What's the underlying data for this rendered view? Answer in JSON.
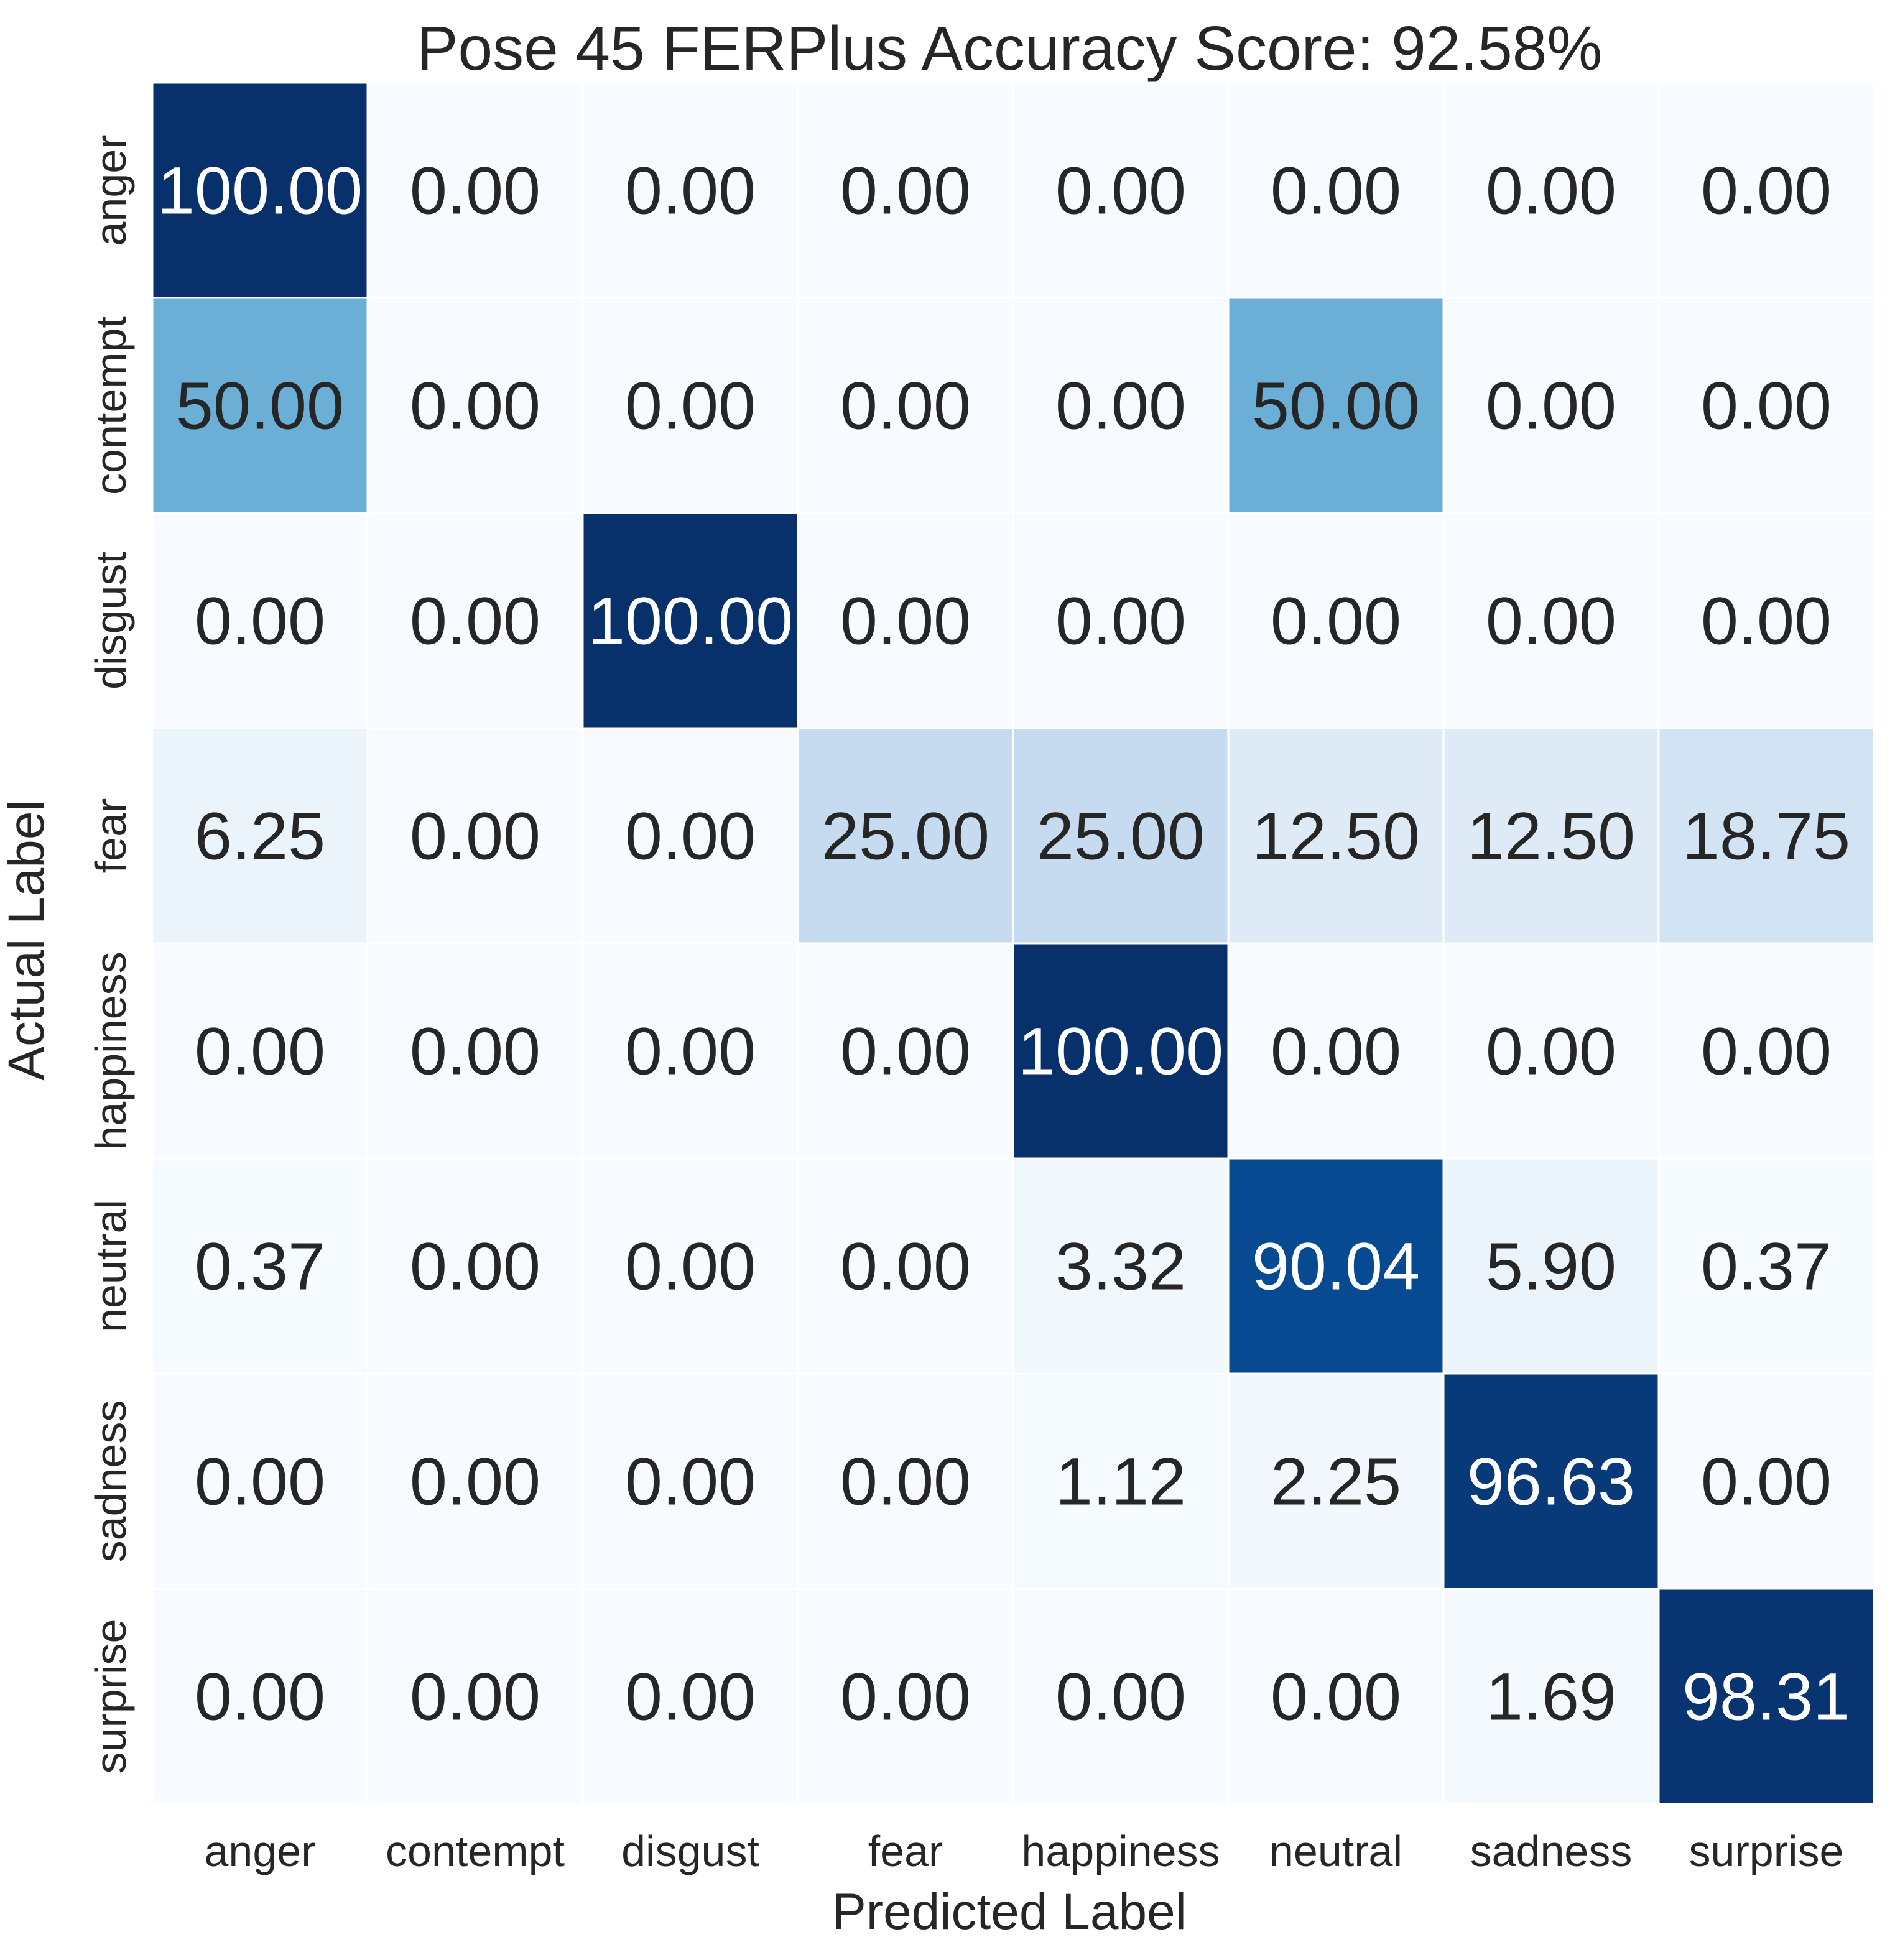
{
  "chart_data": {
    "type": "heatmap",
    "title": "Pose 45 FERPlus Accuracy Score: 92.58%",
    "xlabel": "Predicted Label",
    "ylabel": "Actual Label",
    "x_categories": [
      "anger",
      "contempt",
      "disgust",
      "fear",
      "happiness",
      "neutral",
      "sadness",
      "surprise"
    ],
    "y_categories": [
      "anger",
      "contempt",
      "disgust",
      "fear",
      "happiness",
      "neutral",
      "sadness",
      "surprise"
    ],
    "values": [
      [
        100.0,
        0.0,
        0.0,
        0.0,
        0.0,
        0.0,
        0.0,
        0.0
      ],
      [
        50.0,
        0.0,
        0.0,
        0.0,
        0.0,
        50.0,
        0.0,
        0.0
      ],
      [
        0.0,
        0.0,
        100.0,
        0.0,
        0.0,
        0.0,
        0.0,
        0.0
      ],
      [
        6.25,
        0.0,
        0.0,
        25.0,
        25.0,
        12.5,
        12.5,
        18.75
      ],
      [
        0.0,
        0.0,
        0.0,
        0.0,
        100.0,
        0.0,
        0.0,
        0.0
      ],
      [
        0.37,
        0.0,
        0.0,
        0.0,
        3.32,
        90.04,
        5.9,
        0.37
      ],
      [
        0.0,
        0.0,
        0.0,
        0.0,
        1.12,
        2.25,
        96.63,
        0.0
      ],
      [
        0.0,
        0.0,
        0.0,
        0.0,
        0.0,
        0.0,
        1.69,
        98.31
      ]
    ],
    "value_format": "2 decimals",
    "colormap": "Blues",
    "vmin": 0,
    "vmax": 100,
    "colorbar": false,
    "grid": false
  }
}
